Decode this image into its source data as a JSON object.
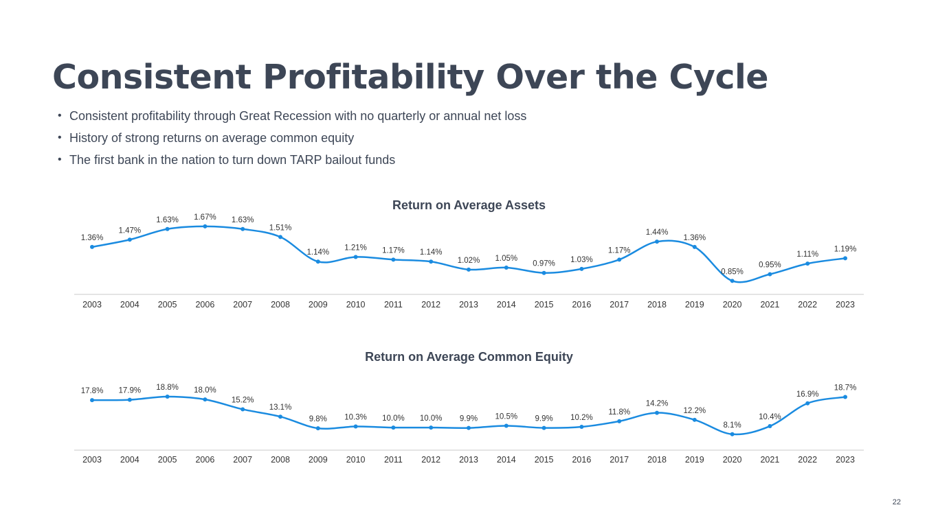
{
  "page": {
    "title": "Consistent Profitability Over the Cycle",
    "bullets": [
      "Consistent profitability through Great Recession with no quarterly or annual net loss",
      "History of strong returns on average common equity",
      "The first bank in the nation to turn down TARP bailout funds"
    ],
    "bullet_glyph": "•",
    "page_number": "22"
  },
  "colors": {
    "line": "#1a8be0",
    "axis": "#c8c8c8",
    "text": "#3d4656",
    "label": "#333333"
  },
  "chart_data": [
    {
      "type": "line",
      "title": "Return on Average Assets",
      "xlabel": "",
      "ylabel": "",
      "categories": [
        "2003",
        "2004",
        "2005",
        "2006",
        "2007",
        "2008",
        "2009",
        "2010",
        "2011",
        "2012",
        "2013",
        "2014",
        "2015",
        "2016",
        "2017",
        "2018",
        "2019",
        "2020",
        "2021",
        "2022",
        "2023"
      ],
      "values": [
        1.36,
        1.47,
        1.63,
        1.67,
        1.63,
        1.51,
        1.14,
        1.21,
        1.17,
        1.14,
        1.02,
        1.05,
        0.97,
        1.03,
        1.17,
        1.44,
        1.36,
        0.85,
        0.95,
        1.11,
        1.19
      ],
      "labels": [
        "1.36%",
        "1.47%",
        "1.63%",
        "1.67%",
        "1.63%",
        "1.51%",
        "1.14%",
        "1.21%",
        "1.17%",
        "1.14%",
        "1.02%",
        "1.05%",
        "0.97%",
        "1.03%",
        "1.17%",
        "1.44%",
        "1.36%",
        "0.85%",
        "0.95%",
        "1.11%",
        "1.19%"
      ],
      "ylim": [
        0.75,
        1.7
      ],
      "grid": false,
      "legend": "none",
      "smooth": true
    },
    {
      "type": "line",
      "title": "Return on Average Common Equity",
      "xlabel": "",
      "ylabel": "",
      "categories": [
        "2003",
        "2004",
        "2005",
        "2006",
        "2007",
        "2008",
        "2009",
        "2010",
        "2011",
        "2012",
        "2013",
        "2014",
        "2015",
        "2016",
        "2017",
        "2018",
        "2019",
        "2020",
        "2021",
        "2022",
        "2023"
      ],
      "values": [
        17.8,
        17.9,
        18.8,
        18.0,
        15.2,
        13.1,
        9.8,
        10.3,
        10.0,
        10.0,
        9.9,
        10.5,
        9.9,
        10.2,
        11.8,
        14.2,
        12.2,
        8.1,
        10.4,
        16.9,
        18.7
      ],
      "labels": [
        "17.8%",
        "17.9%",
        "18.8%",
        "18.0%",
        "15.2%",
        "13.1%",
        "9.8%",
        "10.3%",
        "10.0%",
        "10.0%",
        "9.9%",
        "10.5%",
        "9.9%",
        "10.2%",
        "11.8%",
        "14.2%",
        "12.2%",
        "8.1%",
        "10.4%",
        "16.9%",
        "18.7%"
      ],
      "ylim": [
        6.5,
        19.0
      ],
      "grid": false,
      "legend": "none",
      "smooth": true
    }
  ]
}
